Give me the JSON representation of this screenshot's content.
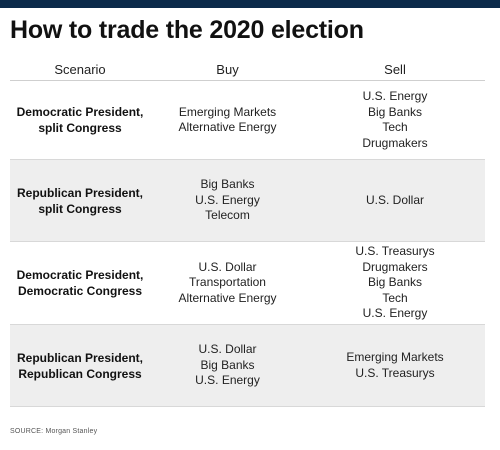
{
  "title": "How to trade the 2020 election",
  "headers": {
    "scenario": "Scenario",
    "buy": "Buy",
    "sell": "Sell"
  },
  "rows": [
    {
      "scenario_line1": "Democratic President,",
      "scenario_line2": "split Congress",
      "buy": [
        "Emerging Markets",
        "Alternative Energy"
      ],
      "sell": [
        "U.S. Energy",
        "Big Banks",
        "Tech",
        "Drugmakers"
      ]
    },
    {
      "scenario_line1": "Republican President,",
      "scenario_line2": "split Congress",
      "buy": [
        "Big Banks",
        "U.S. Energy",
        "Telecom"
      ],
      "sell": [
        "U.S. Dollar"
      ]
    },
    {
      "scenario_line1": "Democratic President,",
      "scenario_line2": "Democratic Congress",
      "buy": [
        "U.S. Dollar",
        "Transportation",
        "Alternative Energy"
      ],
      "sell": [
        "U.S. Treasurys",
        "Drugmakers",
        "Big Banks",
        "Tech",
        "U.S. Energy"
      ]
    },
    {
      "scenario_line1": "Republican President,",
      "scenario_line2": "Republican Congress",
      "buy": [
        "U.S. Dollar",
        "Big Banks",
        "U.S. Energy"
      ],
      "sell": [
        "Emerging Markets",
        "U.S. Treasurys"
      ]
    }
  ],
  "source": "SOURCE: Morgan Stanley",
  "colors": {
    "top_bar": "#0b2a4a",
    "shaded_row": "#eeeeee"
  }
}
